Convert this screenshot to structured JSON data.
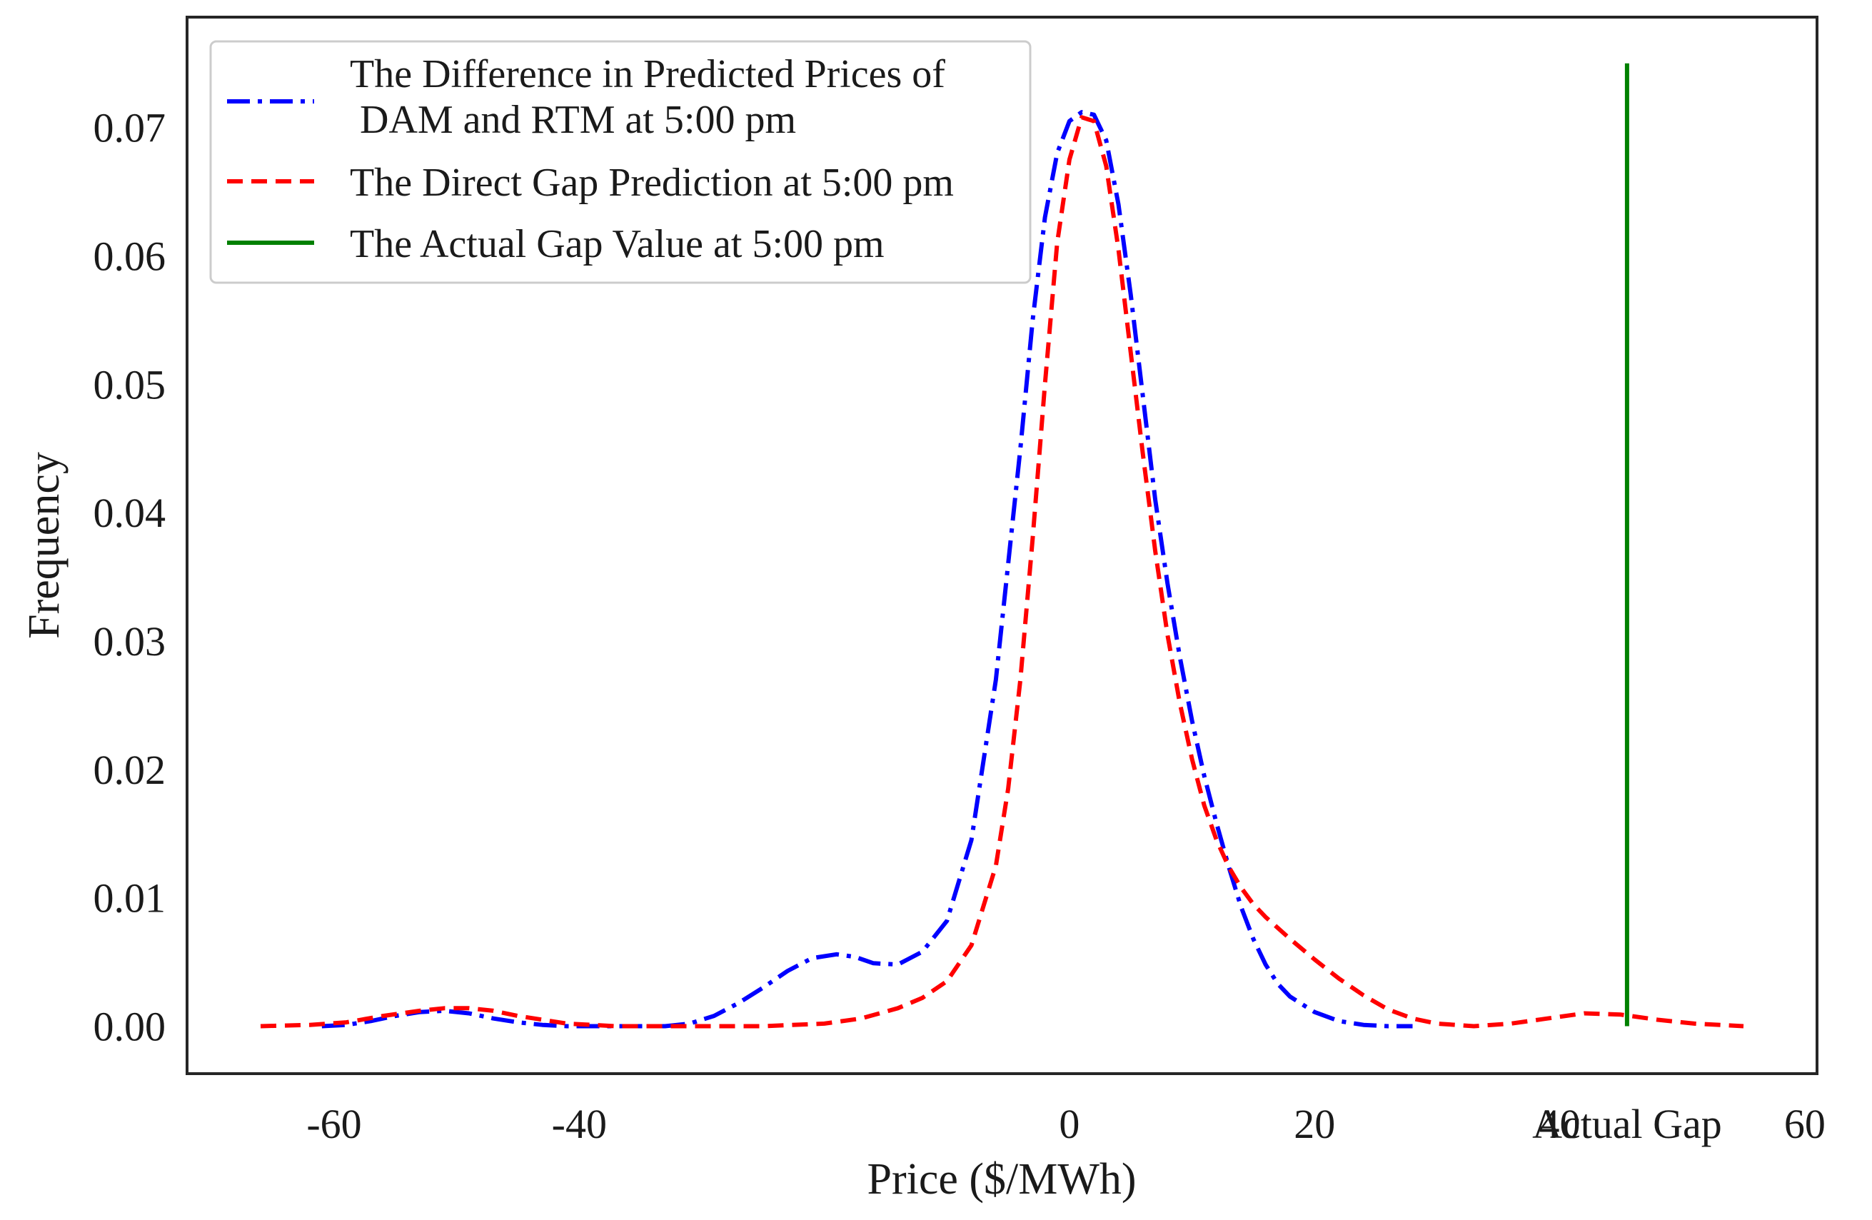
{
  "chart_data": {
    "type": "line",
    "title": "",
    "xlabel": "Price ($/MWh)",
    "ylabel": "Frequency",
    "xlim": [
      -72,
      61
    ],
    "ylim": [
      -0.0037,
      0.0786
    ],
    "grid": false,
    "legend_position": "top-left",
    "x_ticks": [
      {
        "value": -60,
        "label": "-60"
      },
      {
        "value": -40,
        "label": "-40"
      },
      {
        "value": 0,
        "label": "0"
      },
      {
        "value": 20,
        "label": "20"
      },
      {
        "value": 40,
        "label": "40"
      },
      {
        "value": 60,
        "label": "60"
      }
    ],
    "x_annotation": {
      "value": 45.5,
      "label": "Actual Gap"
    },
    "y_ticks": [
      {
        "value": 0.0,
        "label": "0.00"
      },
      {
        "value": 0.01,
        "label": "0.01"
      },
      {
        "value": 0.02,
        "label": "0.02"
      },
      {
        "value": 0.03,
        "label": "0.03"
      },
      {
        "value": 0.04,
        "label": "0.04"
      },
      {
        "value": 0.05,
        "label": "0.05"
      },
      {
        "value": 0.06,
        "label": "0.06"
      },
      {
        "value": 0.07,
        "label": "0.07"
      }
    ],
    "series": [
      {
        "name": "The Difference in Predicted Prices of\n DAM and RTM at 5:00 pm",
        "legend_lines": [
          "The Difference in Predicted Prices of",
          " DAM and RTM at 5:00 pm"
        ],
        "color": "#0000ff",
        "style": "dashdot",
        "x": [
          -61,
          -59,
          -57,
          -55,
          -53,
          -51,
          -49,
          -47,
          -45,
          -43,
          -41,
          -39,
          -37,
          -35,
          -33,
          -31,
          -29,
          -27,
          -25,
          -23,
          -21,
          -19,
          -17.5,
          -16,
          -14,
          -12,
          -10,
          -8,
          -6,
          -4,
          -3,
          -2,
          -1,
          0,
          1,
          2,
          3,
          4,
          5,
          6,
          7,
          8,
          9,
          10,
          11,
          12,
          13,
          14,
          15,
          16,
          17,
          18,
          20,
          22,
          24,
          26,
          28
        ],
        "values": [
          0.0,
          0.0001,
          0.0004,
          0.0008,
          0.0011,
          0.0012,
          0.001,
          0.0006,
          0.0003,
          0.0001,
          0.0,
          0.0,
          0.0,
          0.0,
          0.0,
          0.0002,
          0.0008,
          0.0018,
          0.003,
          0.0043,
          0.0053,
          0.0056,
          0.0054,
          0.0049,
          0.0048,
          0.0058,
          0.0082,
          0.0145,
          0.027,
          0.045,
          0.055,
          0.063,
          0.068,
          0.0705,
          0.0712,
          0.071,
          0.069,
          0.064,
          0.057,
          0.049,
          0.041,
          0.0345,
          0.0288,
          0.0238,
          0.0195,
          0.0158,
          0.0124,
          0.0093,
          0.0068,
          0.0048,
          0.0033,
          0.0023,
          0.0011,
          0.0004,
          0.0001,
          0.0,
          0.0
        ]
      },
      {
        "name": "The Direct Gap Prediction at 5:00 pm",
        "legend_lines": [
          "The Direct Gap Prediction at 5:00 pm"
        ],
        "color": "#ff0000",
        "style": "dashed",
        "x": [
          -66,
          -62,
          -59,
          -56,
          -53,
          -51,
          -49,
          -47,
          -45,
          -43,
          -41,
          -39,
          -37,
          -35,
          -30,
          -25,
          -20,
          -17,
          -14,
          -12,
          -10,
          -8,
          -6,
          -5,
          -4,
          -3,
          -2,
          -1,
          0,
          1,
          2,
          3,
          4,
          5,
          6,
          7,
          8,
          9,
          10,
          11,
          12,
          13,
          14,
          15,
          16,
          18,
          20,
          22,
          24,
          26,
          28,
          30,
          33,
          36,
          39,
          42,
          45,
          48,
          51,
          55
        ],
        "values": [
          0.0,
          0.0001,
          0.0003,
          0.0008,
          0.0012,
          0.0014,
          0.0014,
          0.0012,
          0.0008,
          0.0005,
          0.0002,
          0.0001,
          0.0,
          0.0,
          0.0,
          0.0,
          0.0002,
          0.0006,
          0.0014,
          0.0022,
          0.0035,
          0.0063,
          0.0125,
          0.0185,
          0.027,
          0.038,
          0.05,
          0.061,
          0.0675,
          0.0708,
          0.0705,
          0.067,
          0.0605,
          0.0525,
          0.0445,
          0.037,
          0.0305,
          0.0252,
          0.0208,
          0.0172,
          0.0145,
          0.0124,
          0.0108,
          0.0095,
          0.0085,
          0.0068,
          0.0052,
          0.0037,
          0.0024,
          0.0013,
          0.0006,
          0.0002,
          0.0,
          0.0002,
          0.0006,
          0.001,
          0.0009,
          0.0005,
          0.0002,
          0.0
        ]
      },
      {
        "name": "The Actual Gap Value at 5:00 pm",
        "legend_lines": [
          "The Actual Gap Value at 5:00 pm"
        ],
        "color": "#008000",
        "style": "solid",
        "x": [
          45.5,
          45.5
        ],
        "values": [
          0.0,
          0.075
        ]
      }
    ]
  }
}
